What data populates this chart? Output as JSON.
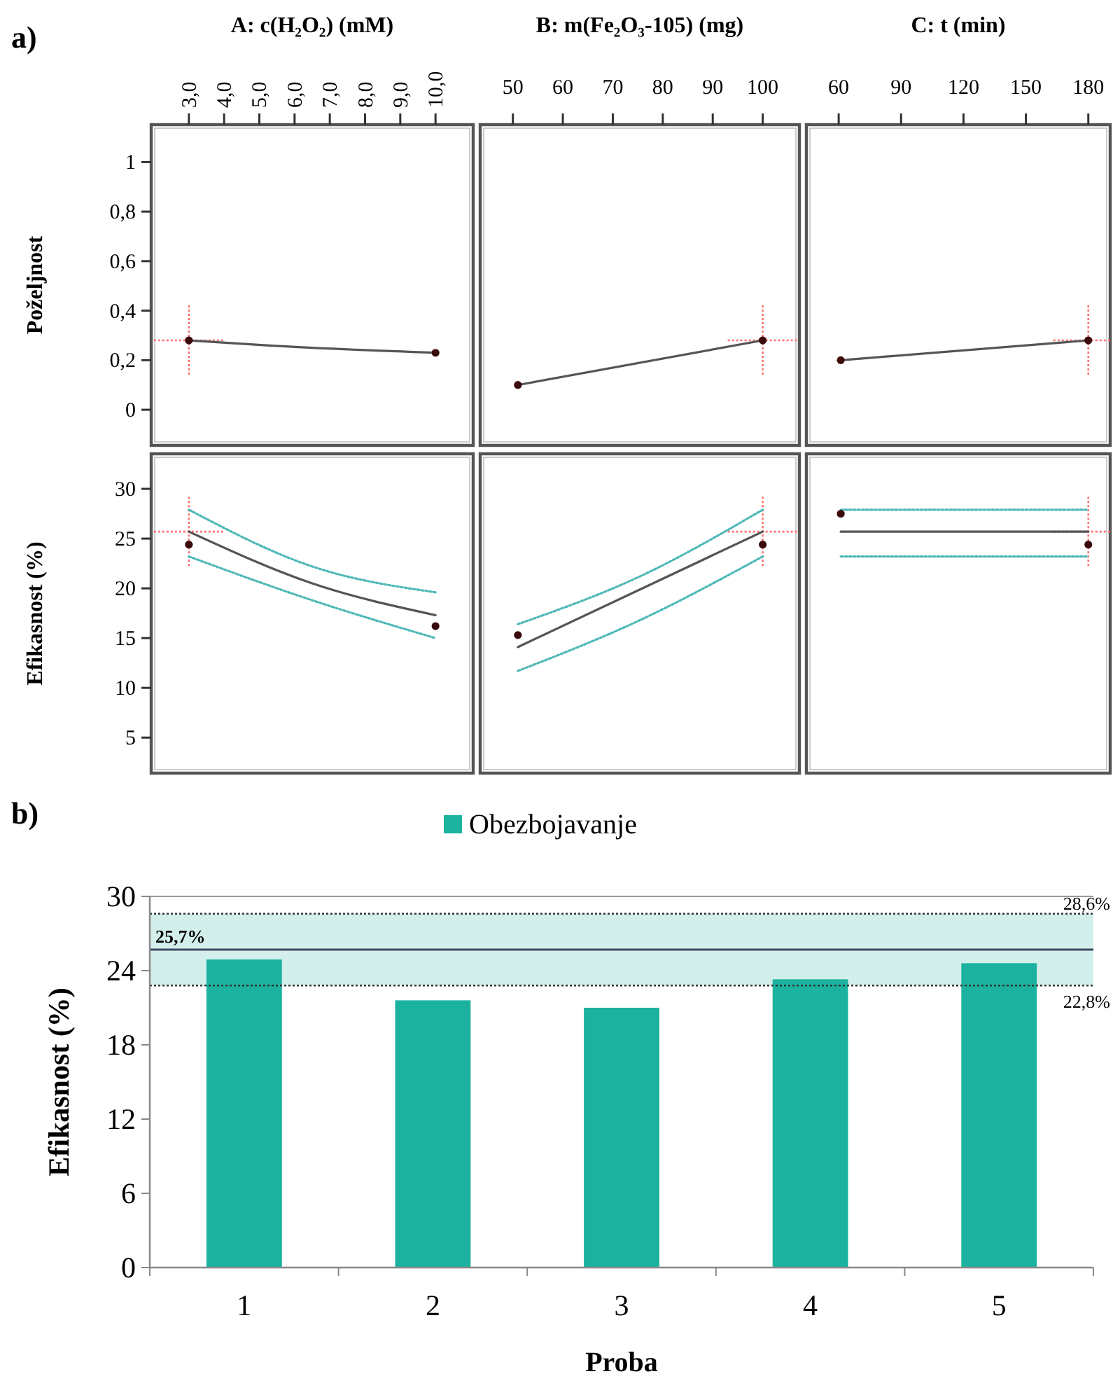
{
  "chart_data": [
    {
      "type": "line",
      "xlabel": "A: c(H₂O₂) (mM)",
      "ylabel": "Poželjnost",
      "annotations": [
        "a)"
      ],
      "xlim": [
        2.05,
        10.95
      ],
      "ylim": [
        -0.127,
        1.134
      ],
      "xticks": [
        {
          "value": 3,
          "label": "3,0"
        },
        {
          "value": 4,
          "label": "4,0"
        },
        {
          "value": 5,
          "label": "5,0"
        },
        {
          "value": 6,
          "label": "6,0"
        },
        {
          "value": 7,
          "label": "7,0"
        },
        {
          "value": 8,
          "label": "8,0"
        },
        {
          "value": 9,
          "label": "9,0"
        },
        {
          "value": 10,
          "label": "10,0"
        }
      ],
      "yticks": [
        0,
        {
          "value": 0.2,
          "label": "0,2"
        },
        {
          "value": 0.4,
          "label": "0,4"
        },
        {
          "value": 0.6,
          "label": "0,6"
        },
        {
          "value": 0.8,
          "label": "0,8"
        },
        1
      ],
      "series": [
        {
          "type": "line",
          "color": "#555555",
          "x": [
            3,
            6.5,
            10
          ],
          "values": [
            0.28,
            0.25,
            0.23
          ]
        },
        {
          "type": "scatter",
          "color": "#3a0a0a",
          "x": [
            3,
            10
          ],
          "values": [
            0.28,
            0.23
          ]
        }
      ],
      "ref_lines": [
        {
          "axis": "x",
          "value": 3,
          "color": "#ff7070",
          "line_style": "dotted"
        },
        {
          "axis": "y",
          "value": 0.28,
          "color": "#ff7070",
          "line_style": "dotted"
        }
      ]
    },
    {
      "type": "line",
      "xlabel": "B: m(Fe₂O₃-105) (mg)",
      "tick_labels": "x",
      "xlim": [
        44.3,
        106.5
      ],
      "ylim": [
        -0.127,
        1.134
      ],
      "xticks": [
        50,
        60,
        70,
        80,
        90,
        100
      ],
      "series": [
        {
          "type": "line",
          "color": "#555555",
          "x": [
            51,
            100
          ],
          "values": [
            0.1,
            0.28
          ]
        },
        {
          "type": "scatter",
          "color": "#3a0a0a",
          "x": [
            51,
            100
          ],
          "values": [
            0.1,
            0.28
          ]
        }
      ],
      "ref_lines": [
        {
          "axis": "x",
          "value": 100,
          "color": "#ff7070",
          "line_style": "dotted"
        },
        {
          "axis": "y",
          "value": 0.28,
          "color": "#ff7070",
          "line_style": "dotted"
        }
      ]
    },
    {
      "type": "line",
      "xlabel": "C: t (min)",
      "tick_labels": "x",
      "xlim": [
        46.5,
        188.5
      ],
      "ylim": [
        -0.127,
        1.134
      ],
      "xticks": [
        60,
        90,
        120,
        150,
        180
      ],
      "series": [
        {
          "type": "line",
          "color": "#555555",
          "x": [
            61,
            180
          ],
          "values": [
            0.2,
            0.28
          ]
        },
        {
          "type": "scatter",
          "color": "#3a0a0a",
          "x": [
            61,
            180
          ],
          "values": [
            0.2,
            0.28
          ]
        }
      ],
      "ref_lines": [
        {
          "axis": "x",
          "value": 180,
          "color": "#ff7070",
          "line_style": "dotted"
        },
        {
          "axis": "y",
          "value": 0.28,
          "color": "#ff7070",
          "line_style": "dotted"
        }
      ]
    },
    {
      "type": "line",
      "ylabel": "Efikasnost (%)",
      "tick_labels": "y",
      "xlim": [
        2.05,
        10.95
      ],
      "ylim": [
        1.85,
        33.1
      ],
      "yticks": [
        5,
        10,
        15,
        20,
        25,
        30
      ],
      "series": [
        {
          "type": "line",
          "color": "#555555",
          "x": [
            3,
            6.5,
            10
          ],
          "values": [
            25.7,
            20.5,
            17.3
          ]
        },
        {
          "type": "line",
          "line_style": "dotted",
          "color": "#4fb8b8",
          "x": [
            3,
            6.5,
            10
          ],
          "values": [
            27.9,
            22.2,
            19.6
          ]
        },
        {
          "type": "line",
          "line_style": "dotted",
          "color": "#4fb8b8",
          "x": [
            3,
            6.5,
            10
          ],
          "values": [
            23.2,
            18.8,
            15.0
          ]
        },
        {
          "type": "scatter",
          "color": "#3a0a0a",
          "x": [
            3,
            10
          ],
          "values": [
            24.4,
            16.2
          ]
        }
      ],
      "ref_lines": [
        {
          "axis": "x",
          "value": 3,
          "color": "#ff7070",
          "line_style": "dotted"
        },
        {
          "axis": "y",
          "value": 25.7,
          "color": "#ff7070",
          "line_style": "dotted"
        }
      ]
    },
    {
      "type": "line",
      "tick_labels": false,
      "xlim": [
        44.3,
        106.5
      ],
      "ylim": [
        1.85,
        33.1
      ],
      "series": [
        {
          "type": "line",
          "color": "#555555",
          "x": [
            51,
            100
          ],
          "values": [
            14.1,
            25.7
          ]
        },
        {
          "type": "line",
          "line_style": "dotted",
          "color": "#4fb8b8",
          "x": [
            51,
            75,
            100
          ],
          "values": [
            16.4,
            21.1,
            27.9
          ]
        },
        {
          "type": "line",
          "line_style": "dotted",
          "color": "#4fb8b8",
          "x": [
            51,
            75,
            100
          ],
          "values": [
            11.7,
            16.7,
            23.2
          ]
        },
        {
          "type": "scatter",
          "color": "#3a0a0a",
          "x": [
            51,
            100
          ],
          "values": [
            15.3,
            24.4
          ]
        }
      ],
      "ref_lines": [
        {
          "axis": "x",
          "value": 100,
          "color": "#ff7070",
          "line_style": "dotted"
        },
        {
          "axis": "y",
          "value": 25.7,
          "color": "#ff7070",
          "line_style": "dotted"
        }
      ]
    },
    {
      "type": "line",
      "tick_labels": false,
      "xlim": [
        46.5,
        188.5
      ],
      "ylim": [
        1.85,
        33.1
      ],
      "series": [
        {
          "type": "line",
          "color": "#555555",
          "x": [
            61,
            180
          ],
          "values": [
            25.7,
            25.7
          ]
        },
        {
          "type": "line",
          "line_style": "dotted",
          "color": "#4fb8b8",
          "x": [
            61,
            180
          ],
          "values": [
            27.9,
            27.9
          ]
        },
        {
          "type": "line",
          "line_style": "dotted",
          "color": "#4fb8b8",
          "x": [
            61,
            180
          ],
          "values": [
            23.2,
            23.2
          ]
        },
        {
          "type": "scatter",
          "color": "#3a0a0a",
          "x": [
            61,
            180
          ],
          "values": [
            27.5,
            24.4
          ]
        }
      ],
      "ref_lines": [
        {
          "axis": "x",
          "value": 180,
          "color": "#ff7070",
          "line_style": "dotted"
        },
        {
          "axis": "y",
          "value": 25.7,
          "color": "#ff7070",
          "line_style": "dotted"
        }
      ]
    },
    {
      "type": "bar",
      "annotations": [
        "b)"
      ],
      "xlabel": "Proba",
      "ylabel": "Efikasnost (%)",
      "legend": "top",
      "categories": [
        "1",
        "2",
        "3",
        "4",
        "5"
      ],
      "series": [
        {
          "name": "Obezbojavanje",
          "color": "#1bb39f",
          "values": [
            24.9,
            21.6,
            21.0,
            23.3,
            24.6
          ]
        }
      ],
      "ylim": [
        0,
        30
      ],
      "yticks": [
        0,
        6,
        12,
        18,
        24,
        30
      ],
      "bands": [
        {
          "axis": "y",
          "from": 22.8,
          "to": 28.6,
          "color": "#d3efeb"
        }
      ],
      "ref_lines": [
        {
          "axis": "y",
          "value": 28.6,
          "label": "28,6%",
          "color": "#333333",
          "line_style": "dotted"
        },
        {
          "axis": "y",
          "value": 22.8,
          "label": "22,8%",
          "color": "#333333",
          "line_style": "dotted"
        },
        {
          "axis": "y",
          "value": 25.7,
          "label": "25,7%",
          "color": "#3d4a66",
          "line_style": "solid"
        }
      ]
    }
  ]
}
